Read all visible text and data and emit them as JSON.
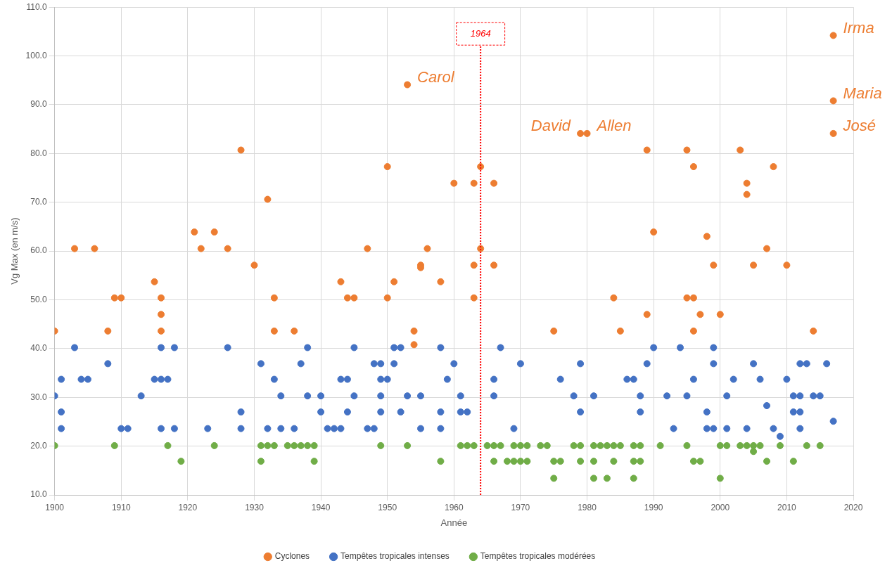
{
  "chart_data": {
    "type": "scatter",
    "xlabel": "Année",
    "ylabel": "Vg Max (en m/s)",
    "xlim": [
      1900,
      2020
    ],
    "xticks": [
      1900,
      1910,
      1920,
      1930,
      1940,
      1950,
      1960,
      1970,
      1980,
      1990,
      2000,
      2010,
      2020
    ],
    "ylim": [
      10,
      110
    ],
    "yticks": [
      {
        "value": 10,
        "label": "10.0"
      },
      {
        "value": 20,
        "label": "20.0"
      },
      {
        "value": 30,
        "label": "30.0"
      },
      {
        "value": 40,
        "label": "40.0"
      },
      {
        "value": 50,
        "label": "50.0"
      },
      {
        "value": 60,
        "label": "60.0"
      },
      {
        "value": 70,
        "label": "70.0"
      },
      {
        "value": 80,
        "label": "80.0"
      },
      {
        "value": 90,
        "label": "90.0"
      },
      {
        "value": 100,
        "label": "100.0"
      },
      {
        "value": 110,
        "label": "110.0"
      }
    ],
    "grid": true,
    "legend": "bottom",
    "marker": "circle",
    "series": [
      {
        "name": "Cyclones",
        "color": "#ed7d31",
        "x": [
          1900,
          1903,
          1906,
          1908,
          1909,
          1910,
          1915,
          1916,
          1916,
          1916,
          1921,
          1922,
          1924,
          1926,
          1928,
          1930,
          1932,
          1933,
          1933,
          1936,
          1943,
          1944,
          1945,
          1947,
          1950,
          1950,
          1951,
          1953,
          1954,
          1954,
          1955,
          1955,
          1956,
          1958,
          1960,
          1963,
          1963,
          1963,
          1964,
          1964,
          1966,
          1966,
          1975,
          1979,
          1980,
          1984,
          1985,
          1989,
          1989,
          1990,
          1995,
          1995,
          1996,
          1996,
          1996,
          1997,
          1998,
          1999,
          2000,
          2003,
          2004,
          2004,
          2005,
          2007,
          2008,
          2010,
          2014,
          2017,
          2017,
          2017
        ],
        "values": [
          43.6,
          60.5,
          60.5,
          43.6,
          50.4,
          50.4,
          53.7,
          50.4,
          47.0,
          43.6,
          63.9,
          60.5,
          63.9,
          60.5,
          80.7,
          57.1,
          70.6,
          50.4,
          43.6,
          43.6,
          53.7,
          50.4,
          50.4,
          60.5,
          77.3,
          50.4,
          53.7,
          94.1,
          43.6,
          40.8,
          57.1,
          56.6,
          60.5,
          53.7,
          73.9,
          73.9,
          57.1,
          50.4,
          77.3,
          60.5,
          73.9,
          57.1,
          43.6,
          84.1,
          84.1,
          50.4,
          43.6,
          80.7,
          47.0,
          63.9,
          80.7,
          50.4,
          77.3,
          50.4,
          43.6,
          47.0,
          63.0,
          57.1,
          47.0,
          80.7,
          73.9,
          71.6,
          57.1,
          60.5,
          77.3,
          57.1,
          43.6,
          104.2,
          90.8,
          84.1
        ]
      },
      {
        "name": "Tempêtes tropicales intenses",
        "color": "#4472c4",
        "x": [
          1900,
          1901,
          1901,
          1901,
          1903,
          1904,
          1905,
          1908,
          1910,
          1911,
          1913,
          1915,
          1916,
          1916,
          1916,
          1917,
          1918,
          1918,
          1923,
          1926,
          1928,
          1928,
          1931,
          1932,
          1933,
          1934,
          1934,
          1936,
          1937,
          1938,
          1938,
          1940,
          1940,
          1941,
          1942,
          1943,
          1943,
          1944,
          1944,
          1945,
          1945,
          1947,
          1948,
          1948,
          1949,
          1949,
          1949,
          1949,
          1950,
          1951,
          1951,
          1952,
          1952,
          1953,
          1955,
          1955,
          1958,
          1958,
          1958,
          1959,
          1960,
          1961,
          1961,
          1962,
          1966,
          1966,
          1967,
          1969,
          1970,
          1976,
          1978,
          1979,
          1979,
          1981,
          1986,
          1987,
          1988,
          1988,
          1989,
          1990,
          1992,
          1993,
          1994,
          1995,
          1996,
          1998,
          1998,
          1999,
          1999,
          1999,
          2001,
          2001,
          2002,
          2004,
          2005,
          2006,
          2007,
          2008,
          2009,
          2010,
          2011,
          2011,
          2012,
          2012,
          2012,
          2012,
          2013,
          2014,
          2015,
          2016,
          2017
        ],
        "values": [
          30.3,
          33.7,
          27.0,
          23.6,
          40.2,
          33.7,
          33.7,
          36.9,
          23.6,
          23.6,
          30.3,
          33.7,
          40.2,
          33.7,
          23.6,
          33.7,
          40.2,
          23.6,
          23.6,
          40.2,
          27.0,
          23.6,
          36.9,
          23.6,
          33.7,
          30.3,
          23.6,
          23.6,
          36.9,
          40.2,
          30.3,
          30.3,
          27.0,
          23.6,
          23.6,
          33.7,
          23.6,
          33.7,
          27.0,
          40.2,
          30.3,
          23.6,
          36.9,
          23.6,
          36.9,
          33.7,
          30.3,
          27.0,
          33.7,
          40.2,
          36.9,
          40.2,
          27.0,
          30.3,
          30.3,
          23.6,
          40.2,
          27.0,
          23.6,
          33.7,
          36.9,
          30.3,
          27.0,
          27.0,
          33.7,
          30.3,
          40.2,
          23.6,
          36.9,
          33.7,
          30.3,
          36.9,
          27.0,
          30.3,
          33.7,
          33.7,
          30.3,
          27.0,
          36.9,
          40.2,
          30.3,
          23.6,
          40.2,
          30.3,
          33.7,
          27.0,
          23.6,
          40.2,
          36.9,
          23.6,
          30.3,
          23.6,
          33.7,
          23.6,
          36.9,
          33.7,
          28.3,
          23.6,
          22.0,
          33.7,
          30.3,
          27.0,
          36.9,
          30.3,
          27.0,
          23.6,
          36.9,
          30.3,
          30.3,
          36.9,
          25.1
        ]
      },
      {
        "name": "Tempêtes tropicales modérées",
        "color": "#70ad47",
        "x": [
          1900,
          1909,
          1917,
          1919,
          1924,
          1931,
          1931,
          1932,
          1933,
          1935,
          1936,
          1937,
          1938,
          1939,
          1939,
          1949,
          1953,
          1958,
          1961,
          1962,
          1963,
          1965,
          1966,
          1966,
          1967,
          1968,
          1969,
          1969,
          1970,
          1970,
          1971,
          1971,
          1973,
          1974,
          1975,
          1975,
          1976,
          1978,
          1979,
          1979,
          1981,
          1981,
          1981,
          1982,
          1983,
          1983,
          1984,
          1984,
          1985,
          1987,
          1987,
          1987,
          1988,
          1988,
          1991,
          1995,
          1996,
          1997,
          2000,
          2000,
          2001,
          2003,
          2004,
          2005,
          2005,
          2006,
          2007,
          2009,
          2011,
          2013,
          2015
        ],
        "values": [
          20.1,
          20.1,
          20.1,
          16.9,
          20.1,
          20.1,
          16.9,
          20.1,
          20.1,
          20.1,
          20.1,
          20.1,
          20.1,
          20.1,
          16.9,
          20.1,
          20.1,
          16.9,
          20.1,
          20.1,
          20.1,
          20.1,
          20.1,
          16.9,
          20.1,
          16.9,
          20.1,
          16.9,
          20.1,
          16.9,
          20.1,
          16.9,
          20.1,
          20.1,
          16.9,
          13.4,
          16.9,
          20.1,
          20.1,
          16.9,
          20.1,
          16.9,
          13.4,
          20.1,
          20.1,
          13.4,
          20.1,
          16.9,
          20.1,
          20.1,
          16.9,
          13.4,
          20.1,
          16.9,
          20.1,
          20.1,
          16.9,
          16.9,
          20.1,
          13.4,
          20.1,
          20.1,
          20.1,
          20.1,
          18.9,
          20.1,
          16.9,
          20.1,
          16.9,
          20.1,
          20.1
        ]
      }
    ],
    "ref_lines": [
      {
        "axis": "x",
        "value": 1964,
        "label": "1964",
        "color": "#ff0000",
        "line_style": "dotted"
      }
    ],
    "annotations": [
      {
        "text": "Carol",
        "x": 1953,
        "y": 94.1
      },
      {
        "text": "David",
        "x": 1979,
        "y": 84.1
      },
      {
        "text": "Allen",
        "x": 1980,
        "y": 84.1
      },
      {
        "text": "Irma",
        "x": 2017,
        "y": 104.2
      },
      {
        "text": "Maria",
        "x": 2017,
        "y": 90.8
      },
      {
        "text": "José",
        "x": 2017,
        "y": 84.1
      }
    ]
  }
}
